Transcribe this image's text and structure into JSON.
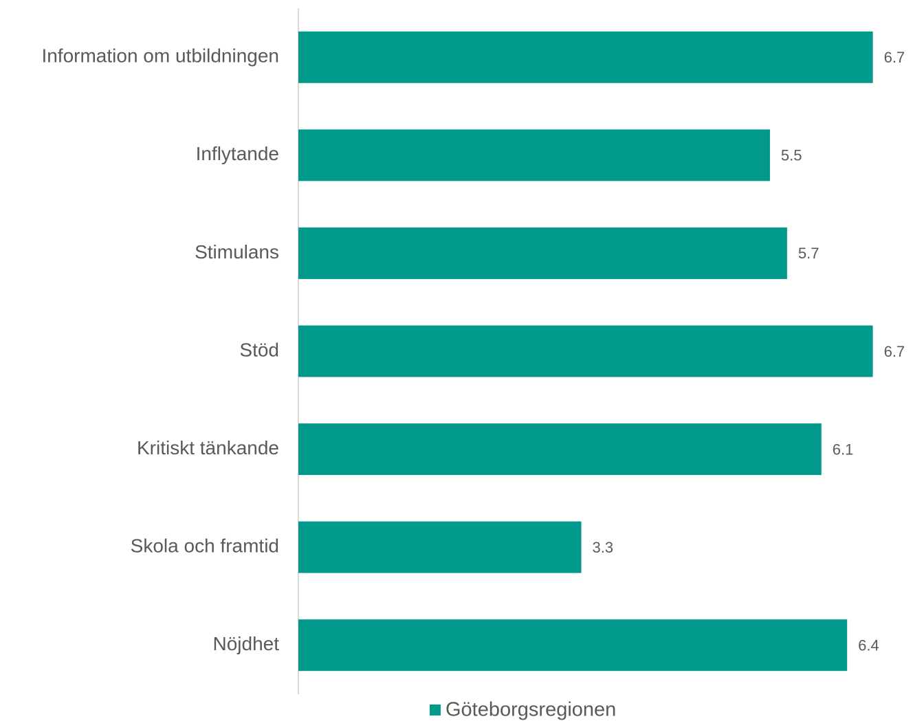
{
  "chart_data": {
    "type": "hbar",
    "categories": [
      "Information om utbildningen",
      "Inflytande",
      "Stimulans",
      "Stöd",
      "Kritiskt tänkande",
      "Skola och framtid",
      "Nöjdhet"
    ],
    "series": [
      {
        "name": "Göteborgsregionen",
        "color": "#00998c",
        "values": [
          6.7,
          5.5,
          5.7,
          6.7,
          6.1,
          3.3,
          6.4
        ]
      }
    ],
    "xlim": [
      0,
      7
    ],
    "legend": "bottom"
  }
}
